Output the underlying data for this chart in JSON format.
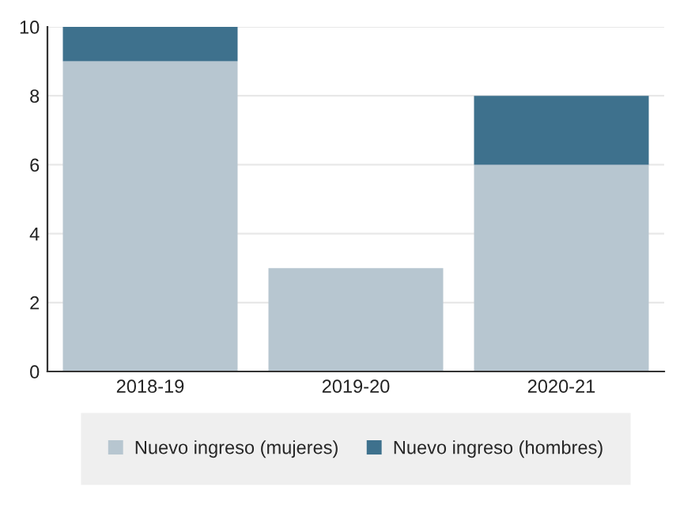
{
  "chart_data": {
    "type": "bar",
    "stacked": true,
    "categories": [
      "2018-19",
      "2019-20",
      "2020-21"
    ],
    "series": [
      {
        "name": "Nuevo ingreso (mujeres)",
        "color": "#b7c6d0",
        "values": [
          9,
          3,
          6
        ]
      },
      {
        "name": "Nuevo ingreso (hombres)",
        "color": "#3e718d",
        "values": [
          1,
          0,
          2
        ]
      }
    ],
    "ylim": [
      0,
      10
    ],
    "yticks": [
      0,
      2,
      4,
      6,
      8,
      10
    ],
    "grid": "y",
    "legend": "bottom"
  }
}
